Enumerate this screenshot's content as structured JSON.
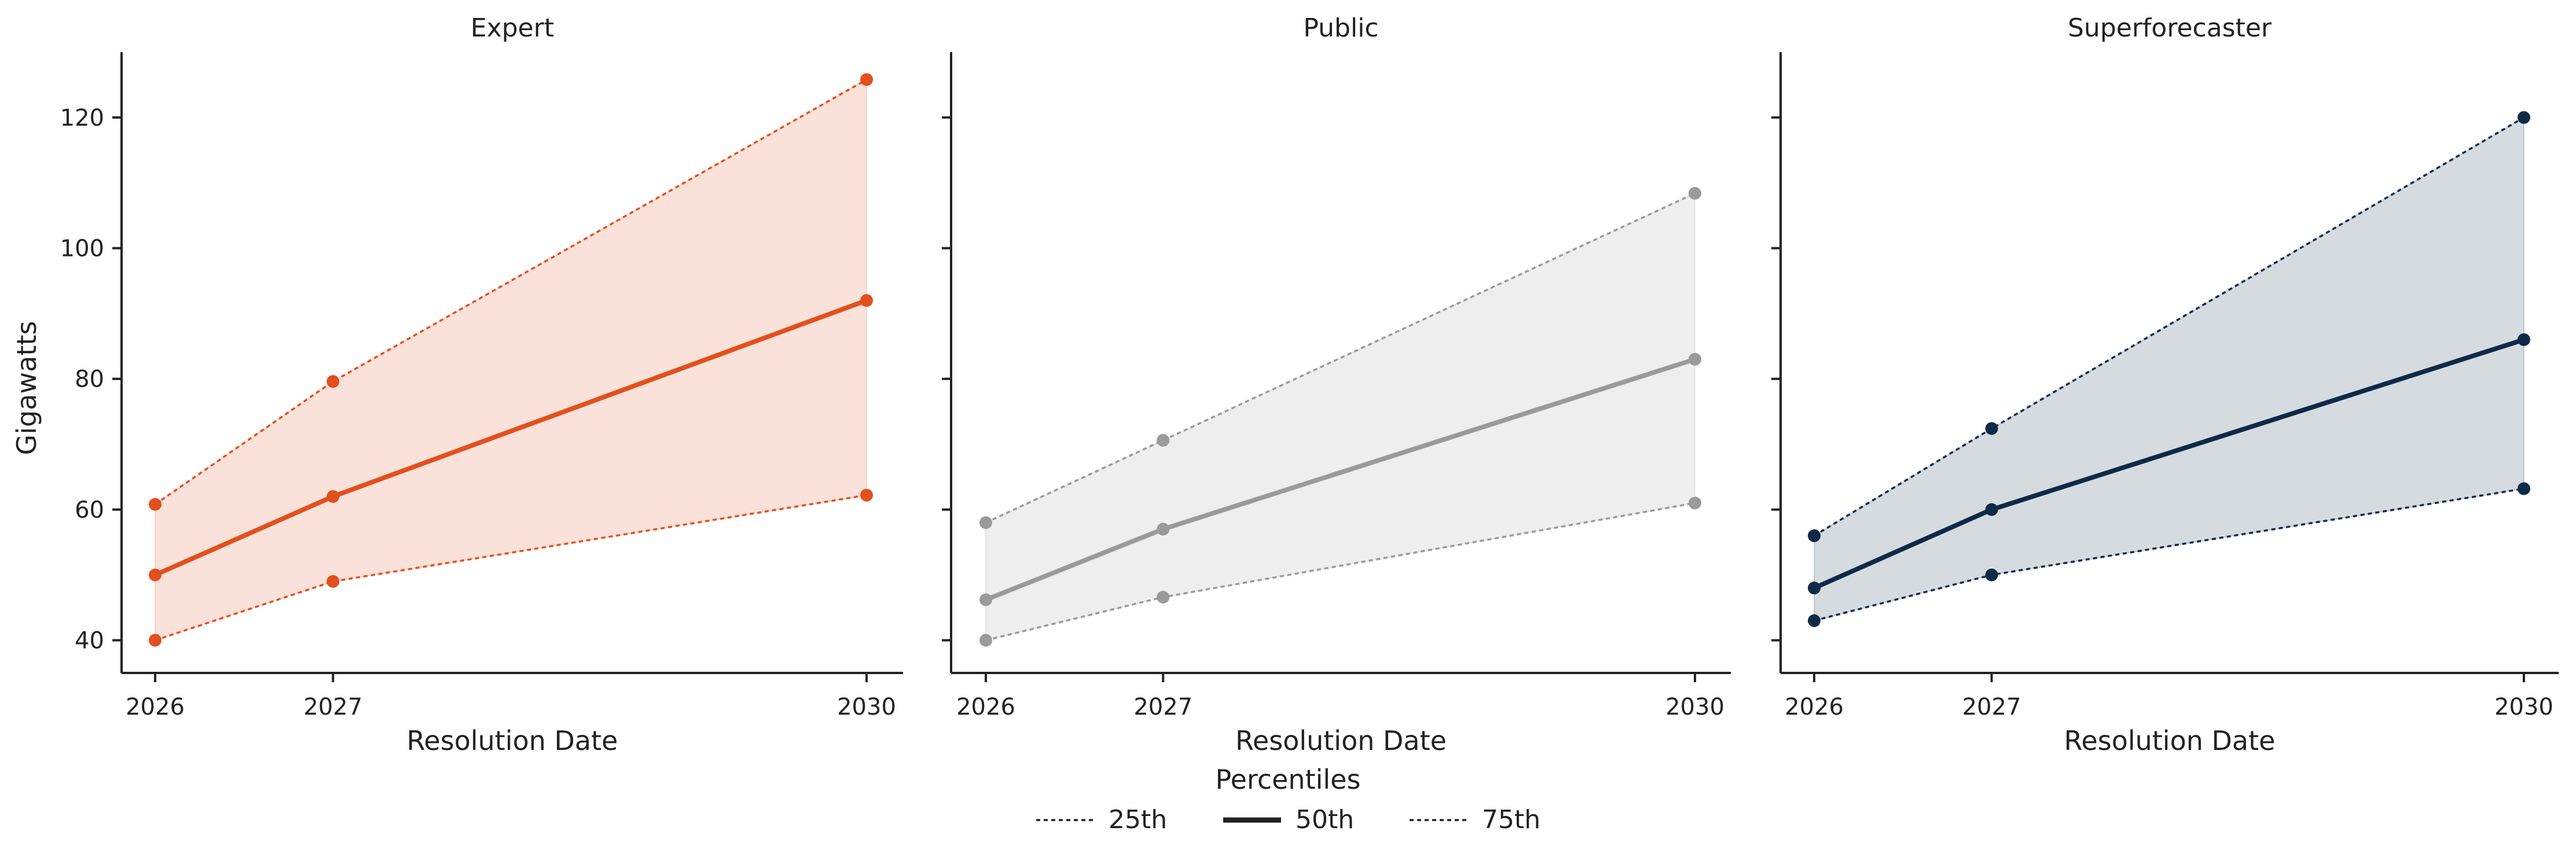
{
  "chart_data": {
    "type": "line",
    "ylabel": "Gigawatts",
    "xlabel": "Resolution Date",
    "x": [
      2026,
      2027,
      2030
    ],
    "xticks": [
      "2026",
      "2027",
      "2030"
    ],
    "ylim": [
      35,
      130
    ],
    "yticks": [
      40,
      60,
      80,
      100,
      120
    ],
    "grid": false,
    "legend": {
      "title": "Percentiles",
      "placement": "bottom-center",
      "entries": [
        "25th",
        "50th",
        "75th"
      ]
    },
    "panels": [
      {
        "title": "Expert",
        "color": "#E2501E",
        "series": [
          {
            "name": "25th",
            "values": [
              40,
              49,
              62.2
            ]
          },
          {
            "name": "50th",
            "values": [
              50,
              62,
              92
            ]
          },
          {
            "name": "75th",
            "values": [
              60.8,
              79.6,
              125.8
            ]
          }
        ]
      },
      {
        "title": "Public",
        "color": "#9A9A9A",
        "series": [
          {
            "name": "25th",
            "values": [
              40,
              46.6,
              61
            ]
          },
          {
            "name": "50th",
            "values": [
              46.2,
              57,
              83
            ]
          },
          {
            "name": "75th",
            "values": [
              58,
              70.6,
              108.4
            ]
          }
        ]
      },
      {
        "title": "Superforecaster",
        "color": "#0E2A47",
        "series": [
          {
            "name": "25th",
            "values": [
              43,
              50,
              63.2
            ]
          },
          {
            "name": "50th",
            "values": [
              48,
              60,
              86
            ]
          },
          {
            "name": "75th",
            "values": [
              56,
              72.4,
              120
            ]
          }
        ]
      }
    ]
  }
}
